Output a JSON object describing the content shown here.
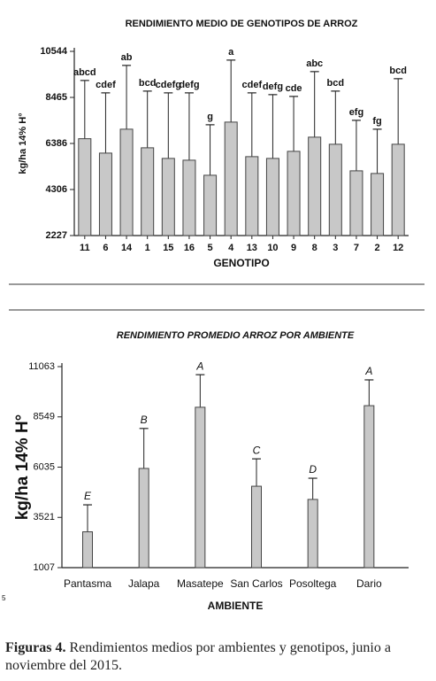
{
  "chart_data": [
    {
      "type": "bar",
      "title": "RENDIMIENTO MEDIO DE GENOTIPOS DE ARROZ",
      "x_label": "GENOTIPO",
      "y_label": "kg/ha 14% H°",
      "categories": [
        "11",
        "6",
        "14",
        "1",
        "15",
        "16",
        "5",
        "4",
        "13",
        "10",
        "9",
        "8",
        "3",
        "7",
        "2",
        "12"
      ],
      "values": [
        6600,
        5950,
        7030,
        6190,
        5710,
        5630,
        4950,
        7350,
        5790,
        5710,
        6030,
        6670,
        6350,
        5150,
        5030,
        6350
      ],
      "errors": [
        2630,
        2720,
        2880,
        2560,
        2960,
        3040,
        2280,
        2800,
        2880,
        2880,
        2480,
        2960,
        2400,
        2280,
        2000,
        2960
      ],
      "annotations": [
        "abcd",
        "cdef",
        "ab",
        "bcd",
        "cdefg",
        "defg",
        "g",
        "a",
        "cdef",
        "defg",
        "cde",
        "abc",
        "bcd",
        "efg",
        "fg",
        "bcd"
      ],
      "color": "#c8c8c8",
      "ylim": [
        2227,
        10544
      ],
      "yticks": [
        2227,
        4306,
        6386,
        8465,
        10544
      ],
      "grid": false
    },
    {
      "type": "bar",
      "title": "RENDIMIENTO PROMEDIO ARROZ POR AMBIENTE",
      "x_label": "AMBIENTE",
      "y_label": "kg/ha 14% H°",
      "categories": [
        "Pantasma",
        "Jalapa",
        "Masatepe",
        "San Carlos",
        "Posoltega",
        "Dario"
      ],
      "values": [
        2800,
        5970,
        9030,
        5080,
        4420,
        9110
      ],
      "errors": [
        1350,
        2000,
        1630,
        1370,
        1060,
        1290
      ],
      "annotations": [
        "E",
        "B",
        "A",
        "C",
        "D",
        "A"
      ],
      "color": "#c8c8c8",
      "ylim": [
        1007,
        11063
      ],
      "yticks": [
        1007,
        3521,
        6035,
        8549,
        11063
      ],
      "grid": false
    }
  ],
  "side_note": "5",
  "caption": {
    "label": "Figuras 4.",
    "text": " Rendimientos medios por ambientes y genotipos, junio a noviembre del 2015."
  }
}
